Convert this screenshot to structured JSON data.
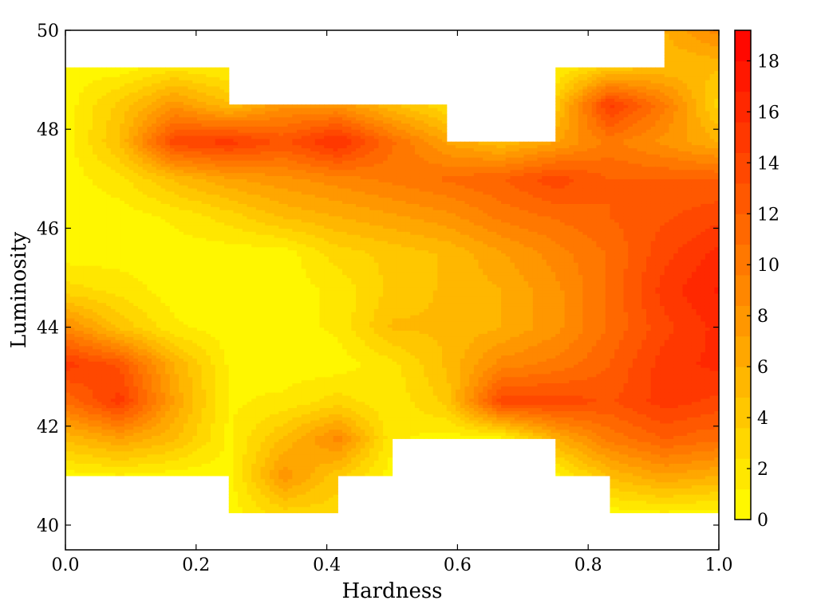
{
  "chart_data": {
    "type": "heatmap",
    "subtype": "filled-contour",
    "xlabel": "Hardness",
    "ylabel": "Luminosity",
    "xlim": [
      0.0,
      1.0
    ],
    "ylim": [
      39.5,
      50.0
    ],
    "x_ticks": [
      "0.0",
      "0.2",
      "0.4",
      "0.6",
      "0.8",
      "1.0"
    ],
    "x_tick_values": [
      0.0,
      0.2,
      0.4,
      0.6,
      0.8,
      1.0
    ],
    "y_ticks": [
      "40",
      "42",
      "44",
      "46",
      "48",
      "50"
    ],
    "y_tick_values": [
      40,
      42,
      44,
      46,
      48,
      50
    ],
    "colorbar": {
      "range": [
        0,
        19.2
      ],
      "ticks": [
        "0",
        "2",
        "4",
        "6",
        "8",
        "10",
        "12",
        "14",
        "16",
        "18"
      ],
      "tick_values": [
        0,
        2,
        4,
        6,
        8,
        10,
        12,
        14,
        16,
        18
      ],
      "colormap": "autumn_r",
      "color_low": "#ffff00",
      "color_high": "#ff0000"
    },
    "grid": false,
    "x": [
      0.0,
      0.0833,
      0.1667,
      0.25,
      0.3333,
      0.4167,
      0.5,
      0.5833,
      0.6667,
      0.75,
      0.8333,
      0.9167,
      1.0
    ],
    "y": [
      40.25,
      41.0,
      41.75,
      42.5,
      43.25,
      44.0,
      44.75,
      45.5,
      46.25,
      47.0,
      47.75,
      48.5,
      49.25,
      50.0
    ],
    "z": [
      [
        null,
        null,
        null,
        0.5,
        3.0,
        3.0,
        null,
        null,
        null,
        null,
        0.5,
        1.0,
        0.5
      ],
      [
        0.5,
        1.0,
        0.5,
        0.5,
        8.0,
        4.0,
        0.5,
        null,
        null,
        0.5,
        5.0,
        7.0,
        6.0
      ],
      [
        5.0,
        7.0,
        5.0,
        1.0,
        5.0,
        9.0,
        1.5,
        0.5,
        0.5,
        6.0,
        10.0,
        12.0,
        11.0
      ],
      [
        11.0,
        15.0,
        7.0,
        1.0,
        1.5,
        3.0,
        1.5,
        4.0,
        14.0,
        14.0,
        13.0,
        15.0,
        14.0
      ],
      [
        15.0,
        13.0,
        6.0,
        1.0,
        0.5,
        0.5,
        2.0,
        5.0,
        9.0,
        10.0,
        12.0,
        15.0,
        16.0
      ],
      [
        9.0,
        4.5,
        1.5,
        0.5,
        0.5,
        1.5,
        5.0,
        5.0,
        6.0,
        8.0,
        11.0,
        14.0,
        16.0
      ],
      [
        3.0,
        2.0,
        0.5,
        0.5,
        0.5,
        1.5,
        4.0,
        5.0,
        6.0,
        8.0,
        11.0,
        15.0,
        17.0
      ],
      [
        0.5,
        0.5,
        0.5,
        0.5,
        0.5,
        3.0,
        4.0,
        5.0,
        7.0,
        9.0,
        11.0,
        14.0,
        16.0
      ],
      [
        0.5,
        0.5,
        1.5,
        3.0,
        5.0,
        6.0,
        7.0,
        8.0,
        10.0,
        11.0,
        12.0,
        13.0,
        14.0
      ],
      [
        0.5,
        2.0,
        5.0,
        7.0,
        8.0,
        9.0,
        10.0,
        11.0,
        12.0,
        14.0,
        12.0,
        12.0,
        12.0
      ],
      [
        0.5,
        5.0,
        14.0,
        15.0,
        13.0,
        16.0,
        11.0,
        7.0,
        5.0,
        7.0,
        10.0,
        8.0,
        6.0
      ],
      [
        0.5,
        4.0,
        8.0,
        5.0,
        8.0,
        8.0,
        5.0,
        2.5,
        null,
        4.0,
        15.0,
        10.0,
        3.0
      ],
      [
        0.5,
        0.5,
        2.0,
        1.0,
        null,
        null,
        null,
        null,
        null,
        1.0,
        4.0,
        5.0,
        5.0
      ],
      [
        null,
        null,
        null,
        null,
        null,
        null,
        null,
        null,
        null,
        null,
        null,
        6.0,
        9.0
      ]
    ],
    "contour_levels": [
      0,
      1.2,
      2.4,
      3.6,
      4.8,
      6.0,
      7.2,
      8.4,
      9.6,
      10.8,
      12.0,
      13.2,
      14.4,
      15.6,
      16.8,
      18.0,
      19.2
    ]
  }
}
